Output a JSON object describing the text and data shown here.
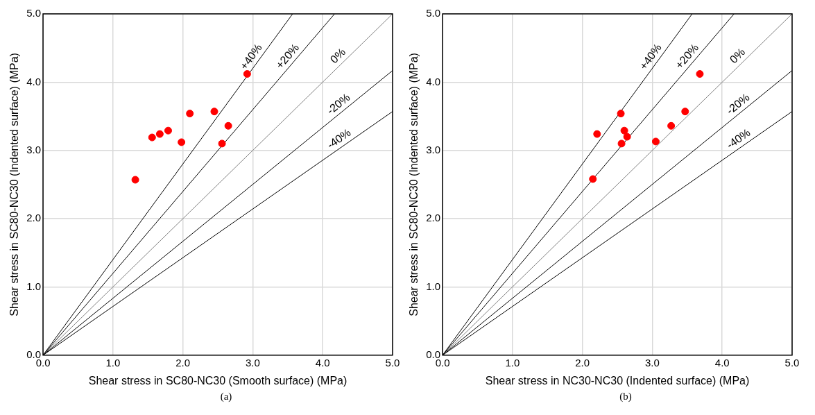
{
  "chart_data": [
    {
      "type": "scatter",
      "xlabel": "Shear stress in SC80-NC30 (Smooth surface) (MPa)",
      "ylabel": "Shear stress in SC80-NC30 (Indented surface) (MPa)",
      "xlim": [
        0,
        5
      ],
      "ylim": [
        0,
        5
      ],
      "xticks": [
        {
          "value": 0,
          "label": "0.0"
        },
        {
          "value": 1,
          "label": "1.0"
        },
        {
          "value": 2,
          "label": "2.0"
        },
        {
          "value": 3,
          "label": "3.0"
        },
        {
          "value": 4,
          "label": "4.0"
        },
        {
          "value": 5,
          "label": "5.0"
        }
      ],
      "yticks": [
        {
          "value": 0,
          "label": "0.0"
        },
        {
          "value": 1,
          "label": "1.0"
        },
        {
          "value": 2,
          "label": "2.0"
        },
        {
          "value": 3,
          "label": "3.0"
        },
        {
          "value": 4,
          "label": "4.0"
        },
        {
          "value": 5,
          "label": "5.0"
        }
      ],
      "grid": true,
      "legend": false,
      "annotations": [
        "(a)"
      ],
      "series": [
        {
          "marker": "circle",
          "color": "#ff0000",
          "x": [
            1.32,
            1.56,
            1.67,
            1.79,
            1.98,
            2.1,
            2.45,
            2.65,
            2.56,
            2.92
          ],
          "values": [
            2.57,
            3.19,
            3.24,
            3.29,
            3.12,
            3.54,
            3.57,
            3.36,
            3.1,
            4.12
          ]
        },
        {
          "type": "line",
          "name": "+40%",
          "color": "#000000",
          "x": [
            0,
            3.57
          ],
          "values": [
            0,
            5
          ]
        },
        {
          "type": "line",
          "name": "+20%",
          "color": "#000000",
          "x": [
            0,
            4.17
          ],
          "values": [
            0,
            5
          ]
        },
        {
          "type": "line",
          "name": "0%",
          "color": "#808080",
          "x": [
            0,
            5
          ],
          "values": [
            0,
            5
          ]
        },
        {
          "type": "line",
          "name": "-20%",
          "color": "#000000",
          "x": [
            0,
            5
          ],
          "values": [
            0,
            4.17
          ]
        },
        {
          "type": "line",
          "name": "-40%",
          "color": "#000000",
          "x": [
            0,
            5
          ],
          "values": [
            0,
            3.57
          ]
        }
      ]
    },
    {
      "type": "scatter",
      "xlabel": "Shear stress in NC30-NC30 (Indented surface) (MPa)",
      "ylabel": "Shear stress in SC80-NC30 (Indented surface) (MPa)",
      "xlim": [
        0,
        5
      ],
      "ylim": [
        0,
        5
      ],
      "xticks": [
        {
          "value": 0,
          "label": "0.0"
        },
        {
          "value": 1,
          "label": "1.0"
        },
        {
          "value": 2,
          "label": "2.0"
        },
        {
          "value": 3,
          "label": "3.0"
        },
        {
          "value": 4,
          "label": "4.0"
        },
        {
          "value": 5,
          "label": "5.0"
        }
      ],
      "yticks": [
        {
          "value": 0,
          "label": "0.0"
        },
        {
          "value": 1,
          "label": "1.0"
        },
        {
          "value": 2,
          "label": "2.0"
        },
        {
          "value": 3,
          "label": "3.0"
        },
        {
          "value": 4,
          "label": "4.0"
        },
        {
          "value": 5,
          "label": "5.0"
        }
      ],
      "grid": true,
      "legend": false,
      "annotations": [
        "(b)"
      ],
      "series": [
        {
          "marker": "circle",
          "color": "#ff0000",
          "x": [
            2.15,
            2.21,
            2.55,
            2.6,
            2.64,
            2.56,
            3.05,
            3.27,
            3.47,
            3.68
          ],
          "values": [
            2.58,
            3.24,
            3.54,
            3.29,
            3.2,
            3.1,
            3.13,
            3.36,
            3.57,
            4.12
          ]
        },
        {
          "type": "line",
          "name": "+40%",
          "color": "#000000",
          "x": [
            0,
            3.57
          ],
          "values": [
            0,
            5
          ]
        },
        {
          "type": "line",
          "name": "+20%",
          "color": "#000000",
          "x": [
            0,
            4.17
          ],
          "values": [
            0,
            5
          ]
        },
        {
          "type": "line",
          "name": "0%",
          "color": "#808080",
          "x": [
            0,
            5
          ],
          "values": [
            0,
            5
          ]
        },
        {
          "type": "line",
          "name": "-20%",
          "color": "#000000",
          "x": [
            0,
            5
          ],
          "values": [
            0,
            4.17
          ]
        },
        {
          "type": "line",
          "name": "-40%",
          "color": "#000000",
          "x": [
            0,
            5
          ],
          "values": [
            0,
            3.57
          ]
        }
      ]
    }
  ]
}
